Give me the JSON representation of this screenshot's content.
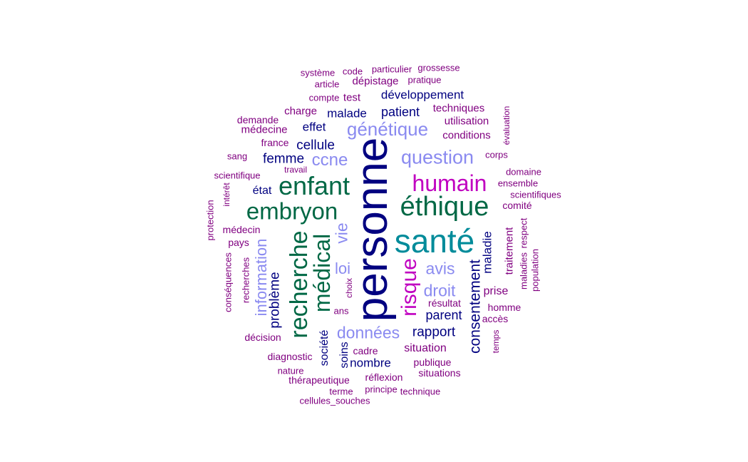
{
  "colors": {
    "navy": "#000080",
    "dark_green": "#006845",
    "teal": "#008B9A",
    "magenta": "#C000C0",
    "periwinkle": "#8A8AF0",
    "purple": "#800080"
  },
  "words": [
    {
      "text": "personne",
      "size": 62,
      "color": "navy",
      "vertical": true
    },
    {
      "text": "santé",
      "size": 46,
      "color": "teal",
      "vertical": false
    },
    {
      "text": "éthique",
      "size": 38,
      "color": "dark_green",
      "vertical": false
    },
    {
      "text": "enfant",
      "size": 36,
      "color": "dark_green",
      "vertical": false
    },
    {
      "text": "embryon",
      "size": 33,
      "color": "dark_green",
      "vertical": false
    },
    {
      "text": "humain",
      "size": 32,
      "color": "magenta",
      "vertical": false
    },
    {
      "text": "recherche",
      "size": 34,
      "color": "dark_green",
      "vertical": true
    },
    {
      "text": "médical",
      "size": 32,
      "color": "dark_green",
      "vertical": true
    },
    {
      "text": "risque",
      "size": 30,
      "color": "magenta",
      "vertical": true
    },
    {
      "text": "question",
      "size": 27,
      "color": "periwinkle",
      "vertical": false
    },
    {
      "text": "génétique",
      "size": 26,
      "color": "periwinkle",
      "vertical": false
    },
    {
      "text": "ccne",
      "size": 24,
      "color": "periwinkle",
      "vertical": false
    },
    {
      "text": "données",
      "size": 23,
      "color": "periwinkle",
      "vertical": false
    },
    {
      "text": "droit",
      "size": 23,
      "color": "periwinkle",
      "vertical": false
    },
    {
      "text": "avis",
      "size": 23,
      "color": "periwinkle",
      "vertical": false
    },
    {
      "text": "vie",
      "size": 23,
      "color": "periwinkle",
      "vertical": true
    },
    {
      "text": "loi",
      "size": 22,
      "color": "periwinkle",
      "vertical": false
    },
    {
      "text": "information",
      "size": 22,
      "color": "periwinkle",
      "vertical": true
    },
    {
      "text": "consentement",
      "size": 21,
      "color": "navy",
      "vertical": true
    },
    {
      "text": "problème",
      "size": 19,
      "color": "navy",
      "vertical": true
    },
    {
      "text": "rapport",
      "size": 19,
      "color": "navy",
      "vertical": false
    },
    {
      "text": "femme",
      "size": 19,
      "color": "navy",
      "vertical": false
    },
    {
      "text": "cellule",
      "size": 19,
      "color": "navy",
      "vertical": false
    },
    {
      "text": "parent",
      "size": 18,
      "color": "navy",
      "vertical": false
    },
    {
      "text": "patient",
      "size": 18,
      "color": "navy",
      "vertical": false
    },
    {
      "text": "nombre",
      "size": 17,
      "color": "navy",
      "vertical": false
    },
    {
      "text": "malade",
      "size": 17,
      "color": "navy",
      "vertical": false
    },
    {
      "text": "effet",
      "size": 17,
      "color": "navy",
      "vertical": false
    },
    {
      "text": "développement",
      "size": 17,
      "color": "navy",
      "vertical": false
    },
    {
      "text": "maladie",
      "size": 17,
      "color": "navy",
      "vertical": true
    },
    {
      "text": "société",
      "size": 16,
      "color": "navy",
      "vertical": true
    },
    {
      "text": "soins",
      "size": 16,
      "color": "navy",
      "vertical": true
    },
    {
      "text": "état",
      "size": 16,
      "color": "navy",
      "vertical": false
    },
    {
      "text": "situation",
      "size": 16,
      "color": "purple",
      "vertical": false
    },
    {
      "text": "prise",
      "size": 16,
      "color": "purple",
      "vertical": false
    },
    {
      "text": "traitement",
      "size": 15,
      "color": "purple",
      "vertical": true
    },
    {
      "text": "conditions",
      "size": 15,
      "color": "purple",
      "vertical": false
    },
    {
      "text": "utilisation",
      "size": 15,
      "color": "purple",
      "vertical": false
    },
    {
      "text": "techniques",
      "size": 15,
      "color": "purple",
      "vertical": false
    },
    {
      "text": "test",
      "size": 15,
      "color": "purple",
      "vertical": false
    },
    {
      "text": "dépistage",
      "size": 15,
      "color": "purple",
      "vertical": false
    },
    {
      "text": "médecine",
      "size": 15,
      "color": "purple",
      "vertical": false
    },
    {
      "text": "charge",
      "size": 15,
      "color": "purple",
      "vertical": false
    },
    {
      "text": "cadre",
      "size": 14,
      "color": "purple",
      "vertical": false
    },
    {
      "text": "médecin",
      "size": 14,
      "color": "purple",
      "vertical": false
    },
    {
      "text": "france",
      "size": 14,
      "color": "purple",
      "vertical": false
    },
    {
      "text": "comité",
      "size": 14,
      "color": "purple",
      "vertical": false
    },
    {
      "text": "décision",
      "size": 14,
      "color": "purple",
      "vertical": false
    },
    {
      "text": "diagnostic",
      "size": 14,
      "color": "purple",
      "vertical": false
    },
    {
      "text": "réflexion",
      "size": 14,
      "color": "purple",
      "vertical": false
    },
    {
      "text": "publique",
      "size": 14,
      "color": "purple",
      "vertical": false
    },
    {
      "text": "situations",
      "size": 14,
      "color": "purple",
      "vertical": false
    },
    {
      "text": "thérapeutique",
      "size": 14,
      "color": "purple",
      "vertical": false
    },
    {
      "text": "résultat",
      "size": 14,
      "color": "purple",
      "vertical": false
    },
    {
      "text": "homme",
      "size": 14,
      "color": "purple",
      "vertical": false
    },
    {
      "text": "accès",
      "size": 14,
      "color": "purple",
      "vertical": false
    },
    {
      "text": "pays",
      "size": 14,
      "color": "purple",
      "vertical": false
    },
    {
      "text": "demande",
      "size": 14,
      "color": "purple",
      "vertical": false
    },
    {
      "text": "domaine",
      "size": 13,
      "color": "purple",
      "vertical": false
    },
    {
      "text": "ensemble",
      "size": 13,
      "color": "purple",
      "vertical": false
    },
    {
      "text": "scientifiques",
      "size": 13,
      "color": "purple",
      "vertical": false
    },
    {
      "text": "scientifique",
      "size": 13,
      "color": "purple",
      "vertical": false
    },
    {
      "text": "corps",
      "size": 13,
      "color": "purple",
      "vertical": false
    },
    {
      "text": "sang",
      "size": 13,
      "color": "purple",
      "vertical": false
    },
    {
      "text": "compte",
      "size": 13,
      "color": "purple",
      "vertical": false
    },
    {
      "text": "article",
      "size": 13,
      "color": "purple",
      "vertical": false
    },
    {
      "text": "code",
      "size": 13,
      "color": "purple",
      "vertical": false
    },
    {
      "text": "système",
      "size": 13,
      "color": "purple",
      "vertical": false
    },
    {
      "text": "particulier",
      "size": 13,
      "color": "purple",
      "vertical": false
    },
    {
      "text": "grossesse",
      "size": 13,
      "color": "purple",
      "vertical": false
    },
    {
      "text": "pratique",
      "size": 13,
      "color": "purple",
      "vertical": false
    },
    {
      "text": "ans",
      "size": 13,
      "color": "purple",
      "vertical": false
    },
    {
      "text": "principe",
      "size": 13,
      "color": "purple",
      "vertical": false
    },
    {
      "text": "technique",
      "size": 13,
      "color": "purple",
      "vertical": false
    },
    {
      "text": "terme",
      "size": 13,
      "color": "purple",
      "vertical": false
    },
    {
      "text": "nature",
      "size": 13,
      "color": "purple",
      "vertical": false
    },
    {
      "text": "cellules_souches",
      "size": 13,
      "color": "purple",
      "vertical": false
    },
    {
      "text": "travail",
      "size": 12,
      "color": "purple",
      "vertical": false
    },
    {
      "text": "respect",
      "size": 13,
      "color": "purple",
      "vertical": true
    },
    {
      "text": "maladies",
      "size": 13,
      "color": "purple",
      "vertical": true
    },
    {
      "text": "population",
      "size": 13,
      "color": "purple",
      "vertical": true
    },
    {
      "text": "recherches",
      "size": 13,
      "color": "purple",
      "vertical": true
    },
    {
      "text": "conséquences",
      "size": 13,
      "color": "purple",
      "vertical": true
    },
    {
      "text": "protection",
      "size": 13,
      "color": "purple",
      "vertical": true
    },
    {
      "text": "intérêt",
      "size": 12,
      "color": "purple",
      "vertical": true
    },
    {
      "text": "choix",
      "size": 12,
      "color": "purple",
      "vertical": true
    },
    {
      "text": "temps",
      "size": 12,
      "color": "purple",
      "vertical": true
    },
    {
      "text": "évaluation",
      "size": 12,
      "color": "purple",
      "vertical": true
    }
  ]
}
